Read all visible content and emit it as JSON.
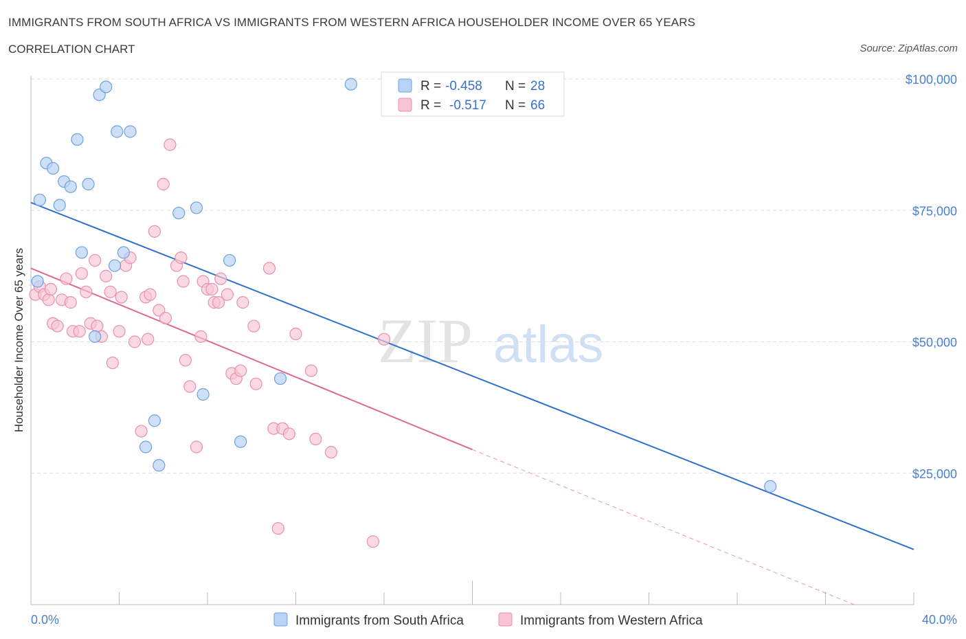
{
  "header": {
    "title": "IMMIGRANTS FROM SOUTH AFRICA VS IMMIGRANTS FROM WESTERN AFRICA HOUSEHOLDER INCOME OVER 65 YEARS",
    "subtitle": "CORRELATION CHART",
    "source": "Source: ZipAtlas.com"
  },
  "watermark": {
    "zip": "ZIP",
    "atlas": "atlas"
  },
  "legend": {
    "series": [
      {
        "r_label": "R =",
        "r_value": "-0.458",
        "n_label": "N =",
        "n_value": "28"
      },
      {
        "r_label": "R =",
        "r_value": "-0.517",
        "n_label": "N =",
        "n_value": "66"
      }
    ]
  },
  "colors": {
    "south_africa_fill": "#b8d3f5",
    "south_africa_stroke": "#6fa0e0",
    "south_africa_line": "#2f6fd0",
    "western_africa_fill": "#f7c4d4",
    "western_africa_stroke": "#e890ad",
    "western_africa_line": "#e06890",
    "axis_label": "#4a7fd0",
    "grid": "#dddddd"
  },
  "chart_data": {
    "type": "scatter",
    "title": "IMMIGRANTS FROM SOUTH AFRICA VS IMMIGRANTS FROM WESTERN AFRICA HOUSEHOLDER INCOME OVER 65 YEARS",
    "xlabel": "",
    "ylabel": "Householder Income Over 65 years",
    "xlim": [
      0,
      40
    ],
    "ylim": [
      0,
      100000
    ],
    "x_tick_labels": [
      "0.0%",
      "40.0%"
    ],
    "y_ticks": [
      25000,
      50000,
      75000,
      100000
    ],
    "y_tick_labels": [
      "$25,000",
      "$50,000",
      "$75,000",
      "$100,000"
    ],
    "grid": true,
    "legend_position": "top-center",
    "series": [
      {
        "name": "Immigrants from South Africa",
        "points": [
          [
            0.3,
            61500
          ],
          [
            0.4,
            77000
          ],
          [
            0.7,
            84000
          ],
          [
            1.0,
            83000
          ],
          [
            1.3,
            76000
          ],
          [
            1.5,
            80500
          ],
          [
            1.8,
            79500
          ],
          [
            2.1,
            88500
          ],
          [
            2.3,
            67000
          ],
          [
            2.6,
            80000
          ],
          [
            3.1,
            97000
          ],
          [
            3.4,
            98500
          ],
          [
            3.8,
            64500
          ],
          [
            3.9,
            90000
          ],
          [
            4.2,
            67000
          ],
          [
            4.5,
            90000
          ],
          [
            2.9,
            51000
          ],
          [
            5.2,
            30000
          ],
          [
            5.6,
            35000
          ],
          [
            5.8,
            26500
          ],
          [
            6.7,
            74500
          ],
          [
            7.5,
            75500
          ],
          [
            7.8,
            40000
          ],
          [
            9.0,
            65500
          ],
          [
            9.5,
            31000
          ],
          [
            11.3,
            43000
          ],
          [
            14.5,
            99000
          ],
          [
            33.5,
            22500
          ]
        ],
        "trend": {
          "x": [
            0,
            40
          ],
          "y": [
            76500,
            10500
          ]
        }
      },
      {
        "name": "Immigrants from Western Africa",
        "points": [
          [
            0.2,
            59000
          ],
          [
            0.4,
            60500
          ],
          [
            0.6,
            59000
          ],
          [
            0.8,
            58000
          ],
          [
            0.9,
            60000
          ],
          [
            1.0,
            53500
          ],
          [
            1.2,
            53000
          ],
          [
            1.4,
            58000
          ],
          [
            1.6,
            62000
          ],
          [
            1.8,
            57500
          ],
          [
            1.9,
            52000
          ],
          [
            2.2,
            52000
          ],
          [
            2.3,
            63000
          ],
          [
            2.5,
            59500
          ],
          [
            2.7,
            53500
          ],
          [
            2.9,
            65500
          ],
          [
            3.0,
            53000
          ],
          [
            3.2,
            51000
          ],
          [
            3.4,
            62500
          ],
          [
            3.6,
            59500
          ],
          [
            3.7,
            46000
          ],
          [
            4.0,
            52000
          ],
          [
            4.1,
            58500
          ],
          [
            4.3,
            64500
          ],
          [
            4.5,
            66000
          ],
          [
            4.7,
            50000
          ],
          [
            5.0,
            33000
          ],
          [
            5.2,
            58500
          ],
          [
            5.3,
            50500
          ],
          [
            5.4,
            59000
          ],
          [
            5.6,
            71000
          ],
          [
            5.8,
            56000
          ],
          [
            6.0,
            80000
          ],
          [
            6.1,
            54500
          ],
          [
            6.3,
            87500
          ],
          [
            6.6,
            64500
          ],
          [
            6.8,
            66000
          ],
          [
            6.9,
            61500
          ],
          [
            7.0,
            46500
          ],
          [
            7.2,
            41500
          ],
          [
            7.5,
            30000
          ],
          [
            7.7,
            51000
          ],
          [
            7.8,
            61500
          ],
          [
            8.0,
            60000
          ],
          [
            8.2,
            60000
          ],
          [
            8.3,
            57500
          ],
          [
            8.5,
            57500
          ],
          [
            8.6,
            62000
          ],
          [
            8.9,
            59000
          ],
          [
            9.1,
            44000
          ],
          [
            9.3,
            43000
          ],
          [
            9.6,
            57500
          ],
          [
            9.5,
            44500
          ],
          [
            10.1,
            53000
          ],
          [
            10.2,
            42000
          ],
          [
            10.8,
            64000
          ],
          [
            11.0,
            33500
          ],
          [
            11.4,
            33500
          ],
          [
            11.7,
            32500
          ],
          [
            12.0,
            51500
          ],
          [
            12.7,
            44500
          ],
          [
            12.9,
            31500
          ],
          [
            13.6,
            29000
          ],
          [
            11.2,
            14500
          ],
          [
            15.5,
            12000
          ],
          [
            16.0,
            50500
          ]
        ],
        "trend": {
          "x": [
            0,
            20
          ],
          "y": [
            64000,
            29500
          ]
        },
        "trend_extension": {
          "x": [
            20,
            37.3
          ],
          "y": [
            29500,
            0
          ]
        }
      }
    ]
  }
}
